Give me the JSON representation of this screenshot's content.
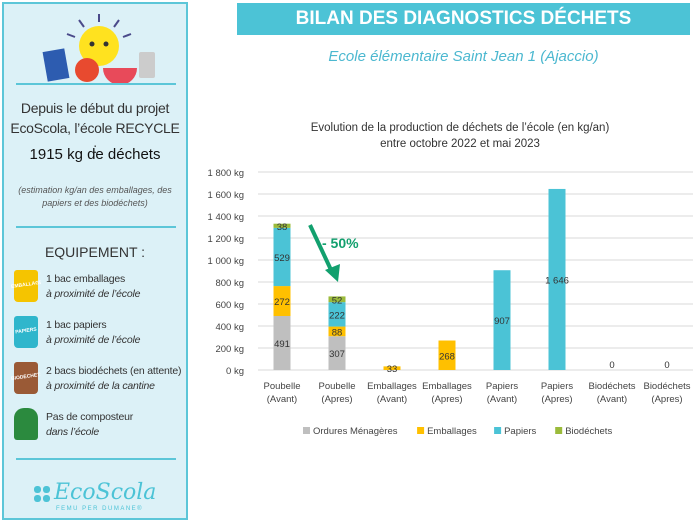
{
  "sidebar": {
    "intro": "Depuis le début du projet EcoScola, l’école RECYCLE :",
    "total": "1915 kg de déchets",
    "note": "(estimation kg/an des emballages, des papiers et des biodéchets)",
    "equip_title": "EQUIPEMENT :",
    "items": [
      {
        "label": "1 bac emballages",
        "sub": "à proximité de l’école",
        "bin": "EMBALLAGES",
        "color": "#f5c400"
      },
      {
        "label": "1 bac papiers",
        "sub": "à proximité de l’école",
        "bin": "PAPIERS",
        "color": "#2fb6cc"
      },
      {
        "label": "2 bacs biodéchets (en attente)",
        "sub": "à proximité de la cantine",
        "bin": "BIODÉCHETS",
        "color": "#9a5a36"
      },
      {
        "label": "Pas de composteur",
        "sub": "dans l’école",
        "bin": "",
        "color": "#2b8a3e"
      }
    ],
    "logo": "EcoScola",
    "logo_tagline": "FEMU PER DUMANE®"
  },
  "header": {
    "title": "BILAN DES DIAGNOSTICS DÉCHETS",
    "subtitle": "Ecole élémentaire Saint Jean 1 (Ajaccio)"
  },
  "chart_data": {
    "type": "bar",
    "stacked": true,
    "title": "Evolution de la production de déchets de l’école (en kg/an) entre octobre 2022 et mai 2023",
    "title_lines": [
      "Evolution de la production de déchets de l’école (en kg/an)",
      "entre octobre 2022 et mai 2023"
    ],
    "categories": [
      "Poubelle (Avant)",
      "Poubelle (Apres)",
      "Emballages (Avant)",
      "Emballages (Apres)",
      "Papiers (Avant)",
      "Papiers (Apres)",
      "Biodéchets (Avant)",
      "Biodéchets (Apres)"
    ],
    "series": [
      {
        "name": "Ordures Ménagères",
        "color": "#bfbfbf",
        "values": [
          491,
          307,
          null,
          null,
          null,
          null,
          null,
          null
        ]
      },
      {
        "name": "Emballages",
        "color": "#ffc000",
        "values": [
          272,
          88,
          33,
          268,
          null,
          null,
          null,
          null
        ]
      },
      {
        "name": "Papiers",
        "color": "#4bc3d6",
        "values": [
          529,
          222,
          null,
          null,
          907,
          1646,
          null,
          null
        ]
      },
      {
        "name": "Biodéchets",
        "color": "#9bbb3b",
        "values": [
          38,
          52,
          null,
          null,
          null,
          null,
          0,
          0
        ]
      }
    ],
    "data_labels": [
      [
        "491",
        "272",
        "529",
        "38"
      ],
      [
        "307",
        "88",
        "222",
        "52"
      ],
      [
        "33"
      ],
      [
        "268"
      ],
      [
        "907"
      ],
      [
        "1 646"
      ],
      [
        "0"
      ],
      [
        "0"
      ]
    ],
    "yticks": [
      "0 kg",
      "200 kg",
      "400 kg",
      "600 kg",
      "800 kg",
      "1 000 kg",
      "1 200 kg",
      "1 400 kg",
      "1 600 kg",
      "1 800 kg"
    ],
    "ylim": [
      0,
      1800
    ],
    "grid": true,
    "legend": "bottom",
    "annotation": {
      "text": "- 50%",
      "color": "#12a06e"
    }
  }
}
